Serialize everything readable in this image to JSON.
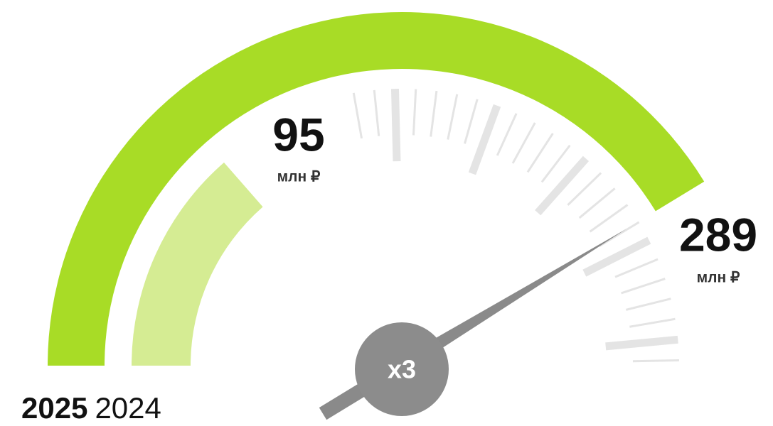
{
  "chart_data": {
    "type": "gauge",
    "series": [
      {
        "name": "2025",
        "color": "#a8dc26",
        "values": [
          289
        ]
      },
      {
        "name": "2024",
        "color": "#d5ec93",
        "values": [
          95
        ]
      }
    ],
    "unit": "млн ₽",
    "annotation": "x3",
    "ylim": [
      0,
      350
    ]
  }
}
